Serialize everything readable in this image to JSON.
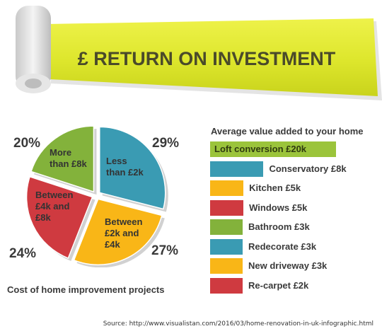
{
  "banner": {
    "title": "£ RETURN ON INVESTMENT"
  },
  "chart_data": [
    {
      "type": "pie",
      "title": "Cost of home improvement projects",
      "slices": [
        {
          "label_lines": [
            "Less",
            "than £2k"
          ],
          "value": 29,
          "pct_label": "29%",
          "color": "#3a9bb3"
        },
        {
          "label_lines": [
            "Between",
            "£2k and",
            "£4k"
          ],
          "value": 27,
          "pct_label": "27%",
          "color": "#f9b617"
        },
        {
          "label_lines": [
            "Between",
            "£4k and",
            "£8k"
          ],
          "value": 24,
          "pct_label": "24%",
          "color": "#cf3a40"
        },
        {
          "label_lines": [
            "More",
            "than £8k"
          ],
          "value": 20,
          "pct_label": "20%",
          "color": "#83b23b"
        }
      ]
    },
    {
      "type": "bar",
      "title": "Average value added to your home",
      "unit": "£k",
      "bars": [
        {
          "label": "Loft conversion £20k",
          "value": 20,
          "color": "#9bc43b"
        },
        {
          "label": "Conservatory £8k",
          "value": 8,
          "color": "#3a9bb3"
        },
        {
          "label": "Kitchen £5k",
          "value": 5,
          "color": "#f9b617"
        },
        {
          "label": "Windows £5k",
          "value": 5,
          "color": "#cf3a40"
        },
        {
          "label": "Bathroom £3k",
          "value": 3,
          "color": "#83b23b"
        },
        {
          "label": "Redecorate £3k",
          "value": 3,
          "color": "#3a9bb3"
        },
        {
          "label": "New driveway £3k",
          "value": 3,
          "color": "#f9b617"
        },
        {
          "label": "Re-carpet £2k",
          "value": 2,
          "color": "#cf3a40"
        }
      ]
    }
  ],
  "source": "Source:  http://www.visualistan.com/2016/03/home-renovation-in-uk-infographic.html"
}
